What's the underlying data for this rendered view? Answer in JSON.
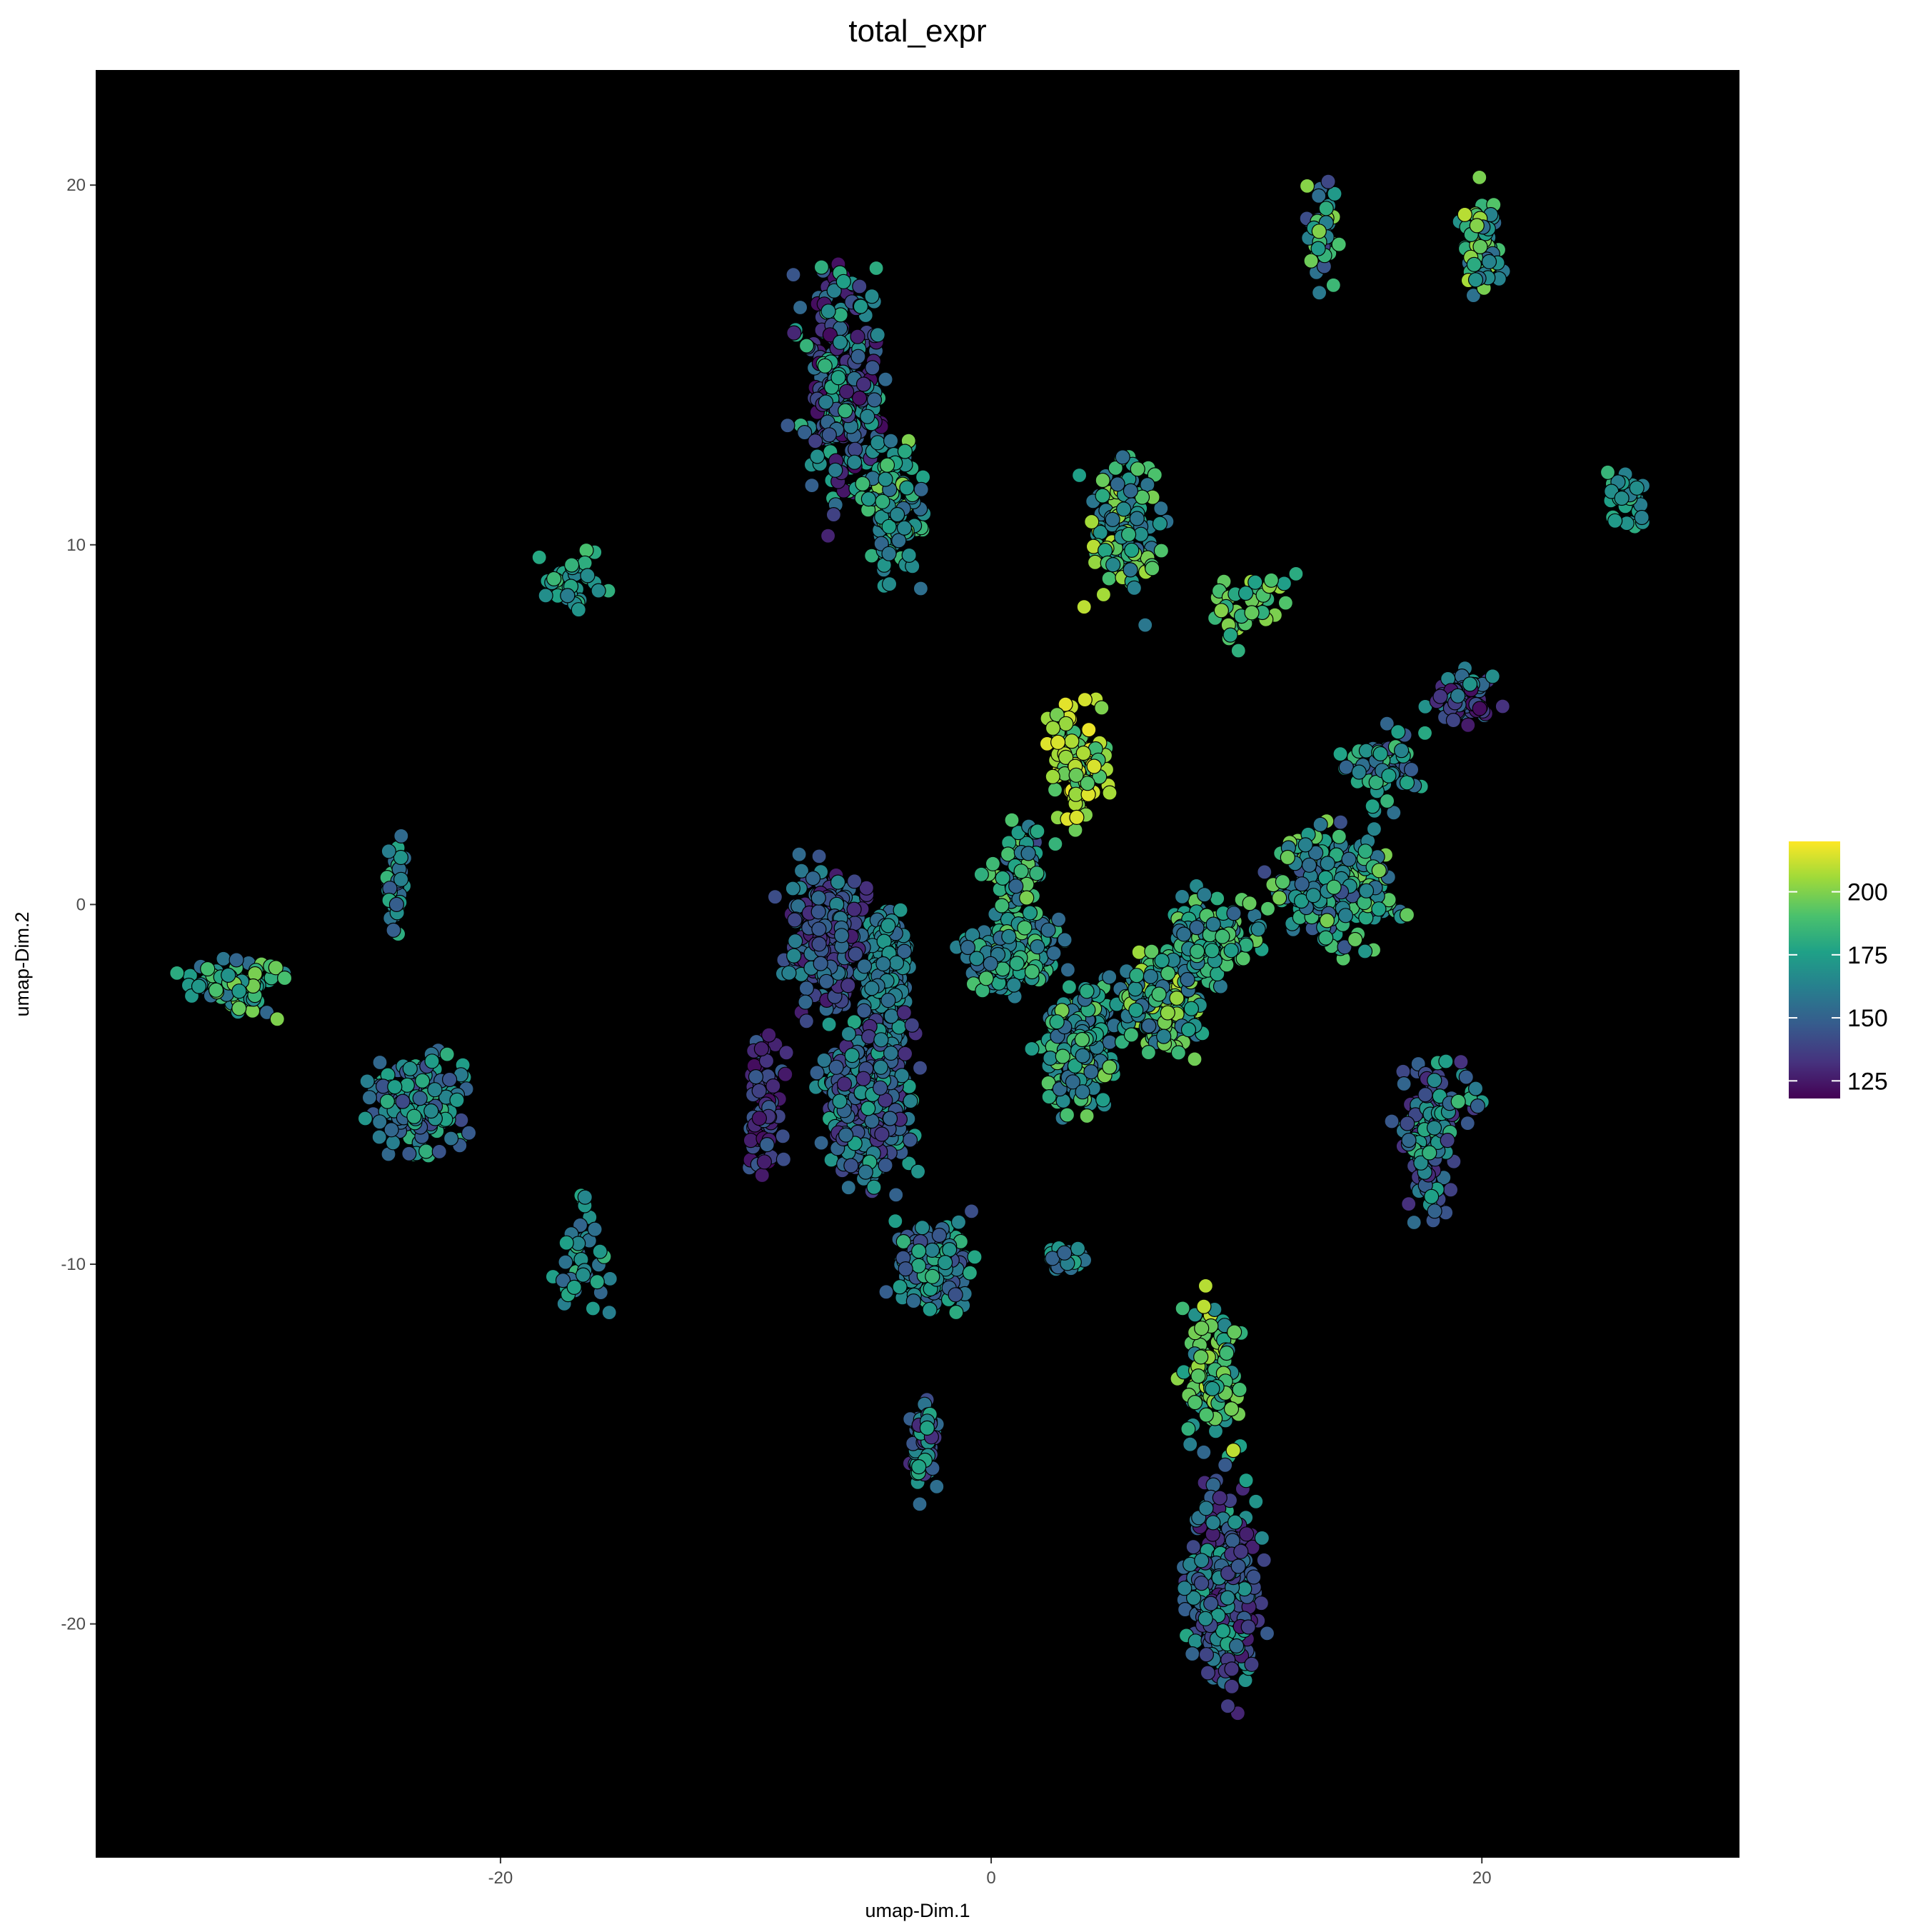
{
  "chart_data": {
    "type": "scatter",
    "title": "total_expr",
    "xlabel": "umap-Dim.1",
    "ylabel": "umap-Dim.2",
    "xlim": [
      -36.5,
      30.5
    ],
    "ylim": [
      -26.5,
      23.2
    ],
    "x_ticks": [
      -20,
      0,
      20
    ],
    "y_ticks": [
      -20,
      -10,
      0,
      10,
      20
    ],
    "x_tick_labels": [
      "-20",
      "0",
      "20"
    ],
    "y_tick_labels": [
      "-20",
      "-10",
      "0",
      "10",
      "20"
    ],
    "panel_background": "#000000",
    "grid": false,
    "legend_position": "right",
    "colorscale": "viridis",
    "color_range": [
      118,
      220
    ],
    "colorbar_ticks": [
      125,
      150,
      175,
      200
    ],
    "colorbar_tick_labels": [
      "125",
      "150",
      "175",
      "200"
    ],
    "colors": {
      "low": "#440154",
      "mid": "#21908C",
      "high": "#FDE725"
    },
    "clusters": [
      {
        "x": [
          -5.5,
          -3
        ],
        "y": [
          -5,
          1
        ],
        "n": 420,
        "color": [
          150,
          175
        ]
      },
      {
        "x": [
          -8,
          -2
        ],
        "y": [
          -9,
          -2
        ],
        "n": 380,
        "color": [
          130,
          180
        ]
      },
      {
        "x": [
          -9.5,
          -4
        ],
        "y": [
          -4,
          2
        ],
        "n": 280,
        "color": [
          125,
          165
        ]
      },
      {
        "x": [
          -5,
          0
        ],
        "y": [
          -12,
          -8
        ],
        "n": 170,
        "color": [
          140,
          185
        ]
      },
      {
        "x": [
          -2,
          4
        ],
        "y": [
          -3,
          0.5
        ],
        "n": 220,
        "color": [
          150,
          195
        ]
      },
      {
        "x": [
          1,
          6
        ],
        "y": [
          -7,
          -1
        ],
        "n": 200,
        "color": [
          150,
          200
        ]
      },
      {
        "x": [
          4,
          10
        ],
        "y": [
          -5,
          -0.5
        ],
        "n": 220,
        "color": [
          150,
          210
        ]
      },
      {
        "x": [
          6,
          12
        ],
        "y": [
          -3,
          1
        ],
        "n": 150,
        "color": [
          150,
          200
        ]
      },
      {
        "x": [
          10,
          18
        ],
        "y": [
          -2,
          3
        ],
        "n": 260,
        "color": [
          140,
          200
        ]
      },
      {
        "x": [
          16,
          19.5
        ],
        "y": [
          -10,
          -3
        ],
        "n": 120,
        "color": [
          130,
          185
        ]
      },
      {
        "x": [
          17,
          21.5
        ],
        "y": [
          4.5,
          7
        ],
        "n": 70,
        "color": [
          120,
          175
        ]
      },
      {
        "x": [
          13,
          19
        ],
        "y": [
          2,
          5.5
        ],
        "n": 60,
        "color": [
          140,
          190
        ]
      },
      {
        "x": [
          1.5,
          5.5
        ],
        "y": [
          1,
          7
        ],
        "n": 110,
        "color": [
          185,
          220
        ]
      },
      {
        "x": [
          3,
          8
        ],
        "y": [
          7,
          14
        ],
        "n": 130,
        "color": [
          150,
          210
        ]
      },
      {
        "x": [
          -9,
          -3
        ],
        "y": [
          9,
          20
        ],
        "n": 280,
        "color": [
          120,
          185
        ]
      },
      {
        "x": [
          -6,
          -2
        ],
        "y": [
          8,
          14
        ],
        "n": 120,
        "color": [
          150,
          200
        ]
      },
      {
        "x": [
          -34.5,
          -27
        ],
        "y": [
          -3.5,
          -1
        ],
        "n": 80,
        "color": [
          150,
          200
        ]
      },
      {
        "x": [
          -27,
          -20
        ],
        "y": [
          -8,
          -3
        ],
        "n": 170,
        "color": [
          140,
          185
        ]
      },
      {
        "x": [
          -25,
          -23.5
        ],
        "y": [
          -2,
          2.5
        ],
        "n": 40,
        "color": [
          140,
          185
        ]
      },
      {
        "x": [
          -19.5,
          -15
        ],
        "y": [
          7.7,
          10.3
        ],
        "n": 40,
        "color": [
          160,
          190
        ]
      },
      {
        "x": [
          -19,
          -14.5
        ],
        "y": [
          -12.5,
          -7
        ],
        "n": 40,
        "color": [
          150,
          185
        ]
      },
      {
        "x": [
          -3.5,
          -2
        ],
        "y": [
          -17,
          -13
        ],
        "n": 90,
        "color": [
          130,
          180
        ]
      },
      {
        "x": [
          7,
          12
        ],
        "y": [
          -24,
          -14
        ],
        "n": 300,
        "color": [
          125,
          180
        ]
      },
      {
        "x": [
          7,
          11
        ],
        "y": [
          -16,
          -10
        ],
        "n": 110,
        "color": [
          160,
          210
        ]
      },
      {
        "x": [
          12.5,
          14.5
        ],
        "y": [
          16,
          21
        ],
        "n": 55,
        "color": [
          135,
          205
        ]
      },
      {
        "x": [
          18.5,
          21.5
        ],
        "y": [
          15.5,
          21
        ],
        "n": 55,
        "color": [
          150,
          210
        ]
      },
      {
        "x": [
          24.5,
          27.5
        ],
        "y": [
          10,
          12.5
        ],
        "n": 30,
        "color": [
          160,
          185
        ]
      },
      {
        "x": [
          1.5,
          4.5
        ],
        "y": [
          -10.5,
          -9
        ],
        "n": 25,
        "color": [
          150,
          180
        ]
      },
      {
        "x": [
          8,
          13
        ],
        "y": [
          6.5,
          10
        ],
        "n": 40,
        "color": [
          170,
          205
        ]
      },
      {
        "x": [
          16,
          21
        ],
        "y": [
          -8,
          -3
        ],
        "n": 40,
        "color": [
          130,
          190
        ]
      },
      {
        "x": [
          -1,
          3
        ],
        "y": [
          -1,
          3
        ],
        "n": 60,
        "color": [
          140,
          200
        ]
      },
      {
        "x": [
          -10.5,
          -8
        ],
        "y": [
          -9,
          -2
        ],
        "n": 80,
        "color": [
          120,
          150
        ]
      }
    ]
  }
}
